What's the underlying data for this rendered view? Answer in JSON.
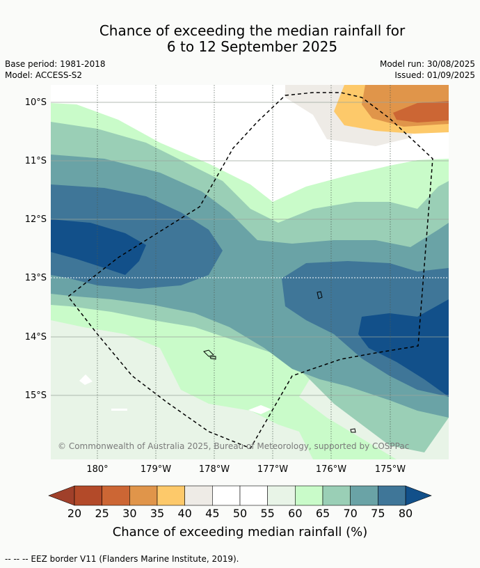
{
  "header": {
    "title_line1": "Chance of exceeding the median rainfall for",
    "title_line2": "6 to 12 September 2025"
  },
  "meta": {
    "base_period": "Base period: 1981-2018",
    "model": "Model: ACCESS-S2",
    "model_run": "Model run: 30/08/2025",
    "issued": "Issued: 01/09/2025"
  },
  "map": {
    "lat_labels": [
      "10°S",
      "11°S",
      "12°S",
      "13°S",
      "14°S",
      "15°S"
    ],
    "lon_labels": [
      "180°",
      "179°W",
      "178°W",
      "177°W",
      "176°W",
      "175°W"
    ],
    "copyright": "© Commonwealth of Australia 2025, Bureau of Meteorology, supported by COSPPac",
    "border_style": "dashed"
  },
  "colorbar": {
    "ticks": [
      "20",
      "25",
      "30",
      "35",
      "40",
      "45",
      "50",
      "55",
      "60",
      "65",
      "70",
      "75",
      "80"
    ],
    "colors": [
      "#b34a29",
      "#cc6634",
      "#e0954a",
      "#fdc96a",
      "#eeebe6",
      "#ffffff",
      "#ffffff",
      "#e8f4e7",
      "#c9fbc9",
      "#9acfb6",
      "#6aa3a6",
      "#3f7698"
    ],
    "under_color": "#a0402a",
    "over_color": "#12508a",
    "label": "Chance of exceeding median rainfall (%)"
  },
  "footnote": "--  --  -- EEZ border V11 (Flanders Marine Institute, 2019)."
}
